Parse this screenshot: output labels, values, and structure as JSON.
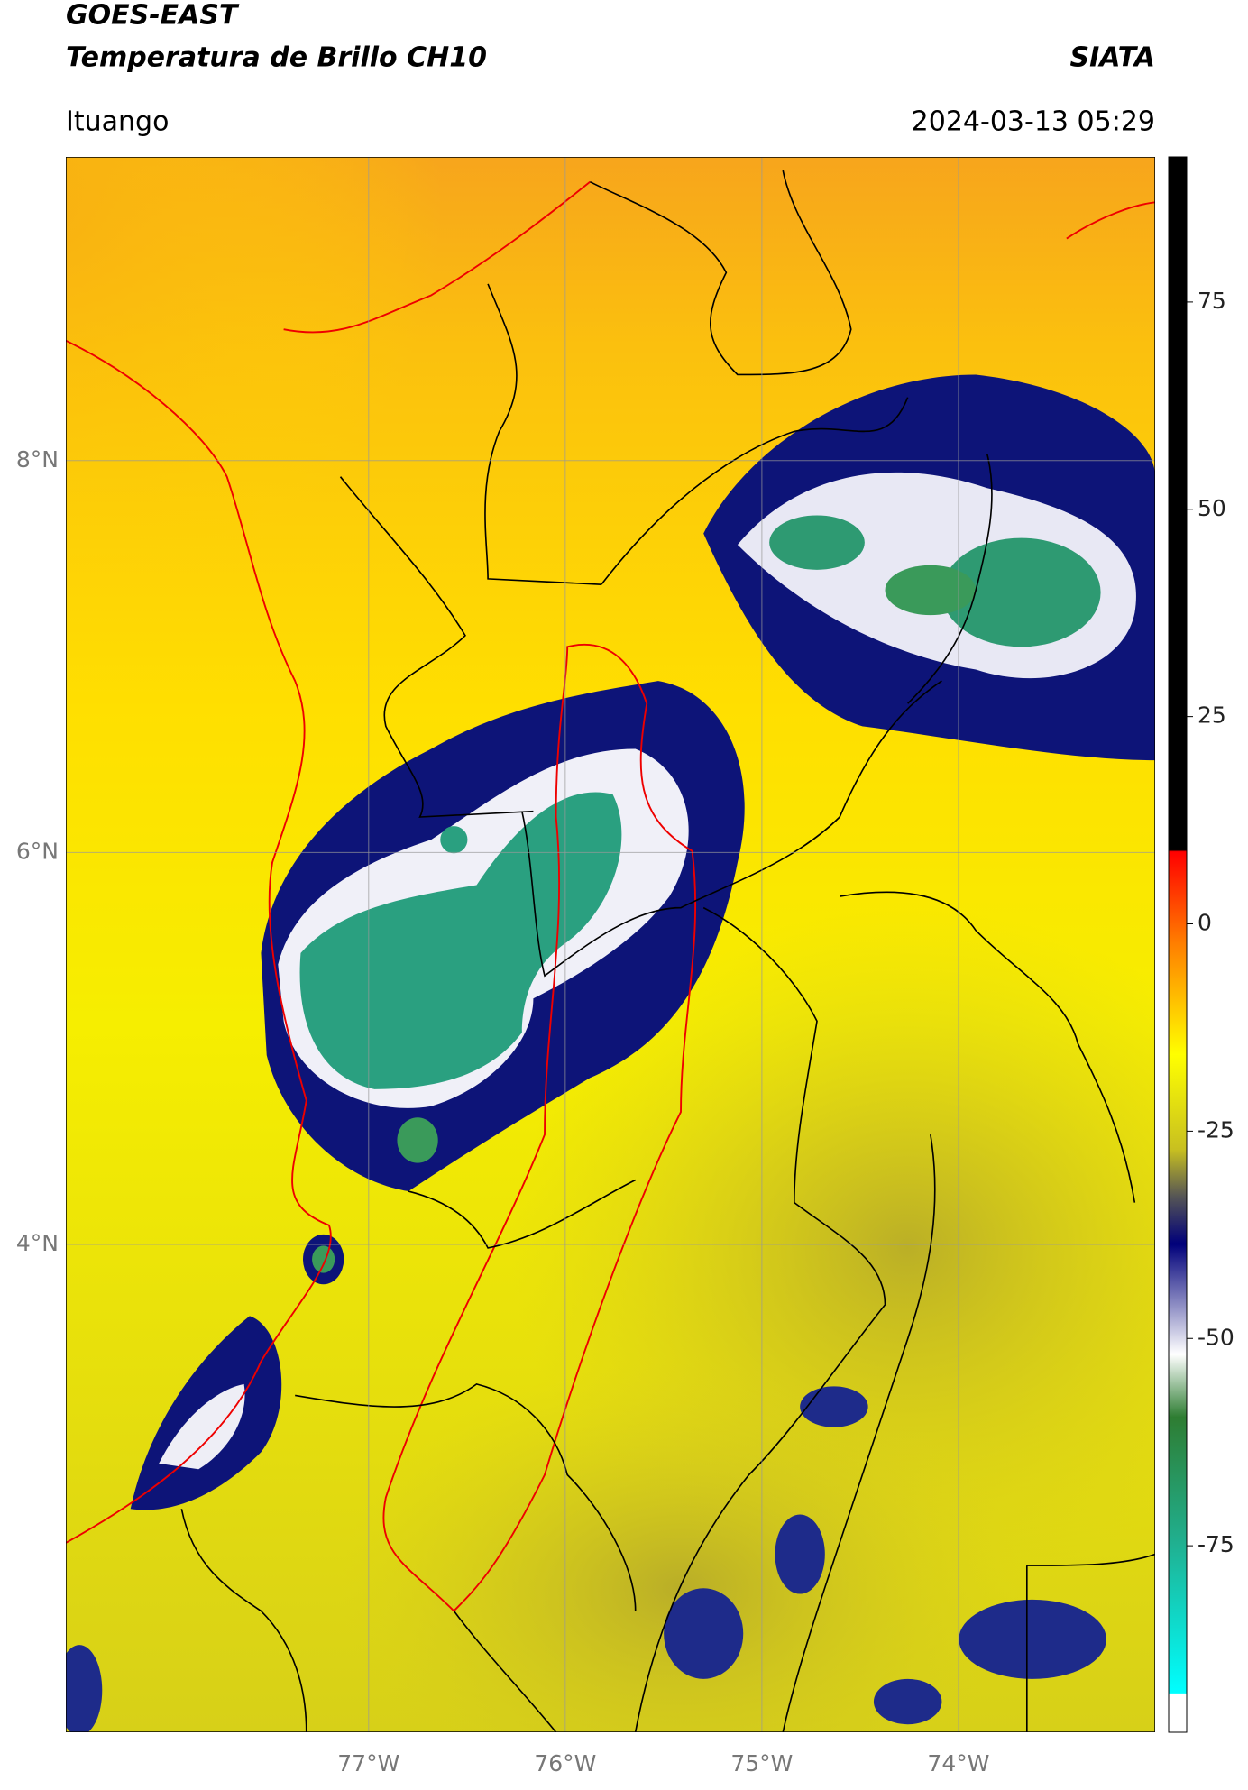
{
  "header": {
    "title": "GOES-EAST",
    "subtitle": "Temperatura de Brillo CH10",
    "source": "SIATA",
    "location": "Ituango",
    "datetime": "2024-03-13 05:29"
  },
  "map": {
    "latlim": [
      1.51,
      9.55
    ],
    "lonlim": [
      -78.54,
      -73.0
    ],
    "lat_ticks": [
      {
        "value": 8,
        "label": "8°N"
      },
      {
        "value": 6,
        "label": "6°N"
      },
      {
        "value": 4,
        "label": "4°N"
      }
    ],
    "lon_ticks": [
      {
        "value": -77,
        "label": "77°W"
      },
      {
        "value": -76,
        "label": "76°W"
      },
      {
        "value": -75,
        "label": "75°W"
      },
      {
        "value": -74,
        "label": "74°W"
      }
    ],
    "grid": true
  },
  "colorbar": {
    "lim": [
      -97.5,
      92.5
    ],
    "ticks": [
      75,
      50,
      25,
      0,
      -25,
      -50,
      -75
    ]
  }
}
